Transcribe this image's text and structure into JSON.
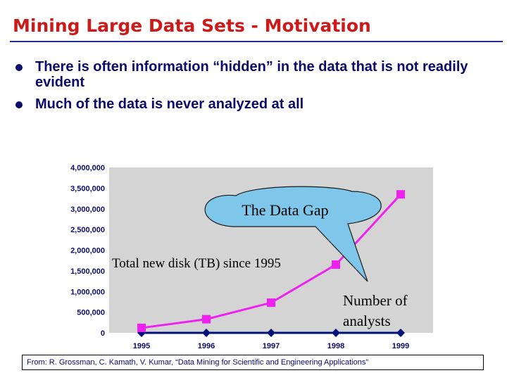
{
  "slide": {
    "title": "Mining Large Data Sets - Motivation",
    "bullets": [
      "There is often information “hidden” in the data that is not readily evident",
      "Much of the data is never analyzed at all"
    ],
    "source": "From: R. Grossman, C. Kamath, V. Kumar, “Data Mining for Scientific and Engineering Applications”"
  },
  "colors": {
    "title": "#cc1a1a",
    "bullet_text": "#0a0a6a",
    "plot_background": "#d4d4d4",
    "series_disk": "#ee22ee",
    "series_analysts": "#00137a",
    "callout_fill": "#7fc7ea"
  },
  "chart_data": {
    "type": "line",
    "x": [
      "1995",
      "1996",
      "1997",
      "1998",
      "1999"
    ],
    "series": [
      {
        "name": "Total new disk (TB) since 1995",
        "values": [
          120000,
          330000,
          730000,
          1650000,
          3350000
        ]
      },
      {
        "name": "Number of analysts",
        "values": [
          0,
          0,
          0,
          0,
          0
        ]
      }
    ],
    "ylim": [
      0,
      4000000
    ],
    "yticks": [
      "0",
      "500,000",
      "1,000,000",
      "1,500,000",
      "2,000,000",
      "2,500,000",
      "3,000,000",
      "3,500,000",
      "4,000,000"
    ],
    "grid": false,
    "annotations": {
      "gap_label": "The Data Gap",
      "analyst_label_lines": [
        "Number of",
        "analysts"
      ]
    }
  }
}
